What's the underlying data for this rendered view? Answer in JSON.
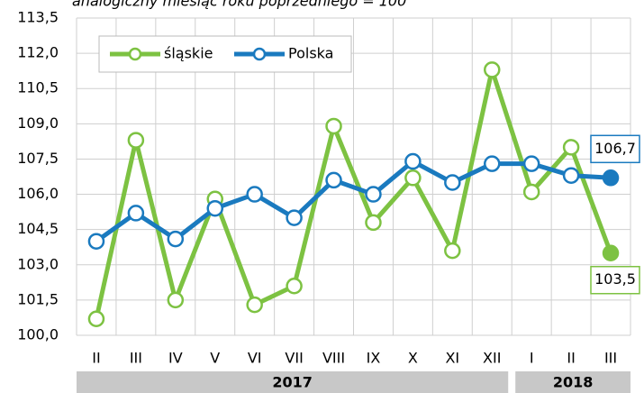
{
  "chart_data": {
    "type": "line",
    "title": "analogiczny miesiąc roku poprzedniego = 100",
    "categories": [
      "II",
      "III",
      "IV",
      "V",
      "VI",
      "VII",
      "VIII",
      "IX",
      "X",
      "XI",
      "XII",
      "I",
      "II",
      "III"
    ],
    "year_groups": [
      {
        "label": "2017",
        "count": 11
      },
      {
        "label": "2018",
        "count": 3
      }
    ],
    "series": [
      {
        "name": "śląskie",
        "color": "#7dc242",
        "values": [
          100.7,
          108.3,
          101.5,
          105.8,
          101.3,
          102.1,
          108.9,
          104.8,
          106.7,
          103.6,
          111.3,
          106.1,
          108.0,
          103.5
        ],
        "value_labels": [
          null,
          null,
          null,
          null,
          null,
          null,
          null,
          null,
          null,
          null,
          null,
          null,
          null,
          "103,5"
        ]
      },
      {
        "name": "Polska",
        "color": "#1a7abf",
        "values": [
          104.0,
          105.2,
          104.1,
          105.4,
          106.0,
          105.0,
          106.6,
          106.0,
          107.4,
          106.5,
          107.3,
          107.3,
          106.8,
          106.7
        ],
        "value_labels": [
          null,
          null,
          null,
          null,
          null,
          null,
          null,
          null,
          null,
          null,
          null,
          null,
          null,
          "106,7"
        ]
      }
    ],
    "ylim": [
      100,
      113.5
    ],
    "yticks": [
      {
        "value": 100,
        "label": "100,0"
      },
      {
        "value": 101.5,
        "label": "101,5"
      },
      {
        "value": 103,
        "label": "103,0"
      },
      {
        "value": 104.5,
        "label": "104,5"
      },
      {
        "value": 106,
        "label": "106,0"
      },
      {
        "value": 107.5,
        "label": "107,5"
      },
      {
        "value": 109,
        "label": "109,0"
      },
      {
        "value": 110.5,
        "label": "110,5"
      },
      {
        "value": 112,
        "label": "112,0"
      },
      {
        "value": 113.5,
        "label": "113,5"
      }
    ],
    "grid": true
  }
}
